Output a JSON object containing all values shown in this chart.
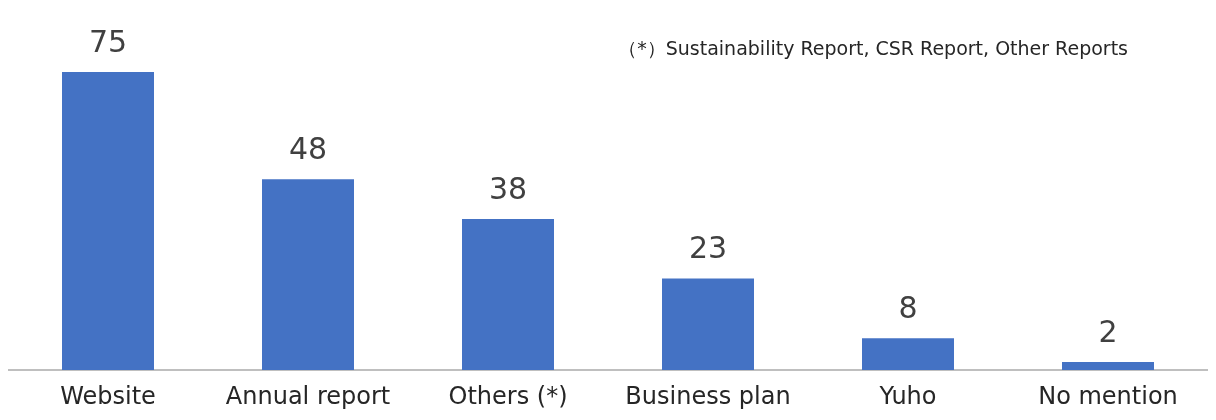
{
  "chart_data": {
    "type": "bar",
    "categories": [
      "Website",
      "Annual report",
      "Others (*)",
      "Business plan",
      "Yuho",
      "No mention"
    ],
    "values": [
      75,
      48,
      38,
      23,
      8,
      2
    ],
    "color": "#4472c4",
    "data_labels": true,
    "annotations": [
      "（*）Sustainability Report, CSR Report, Other Reports"
    ]
  }
}
